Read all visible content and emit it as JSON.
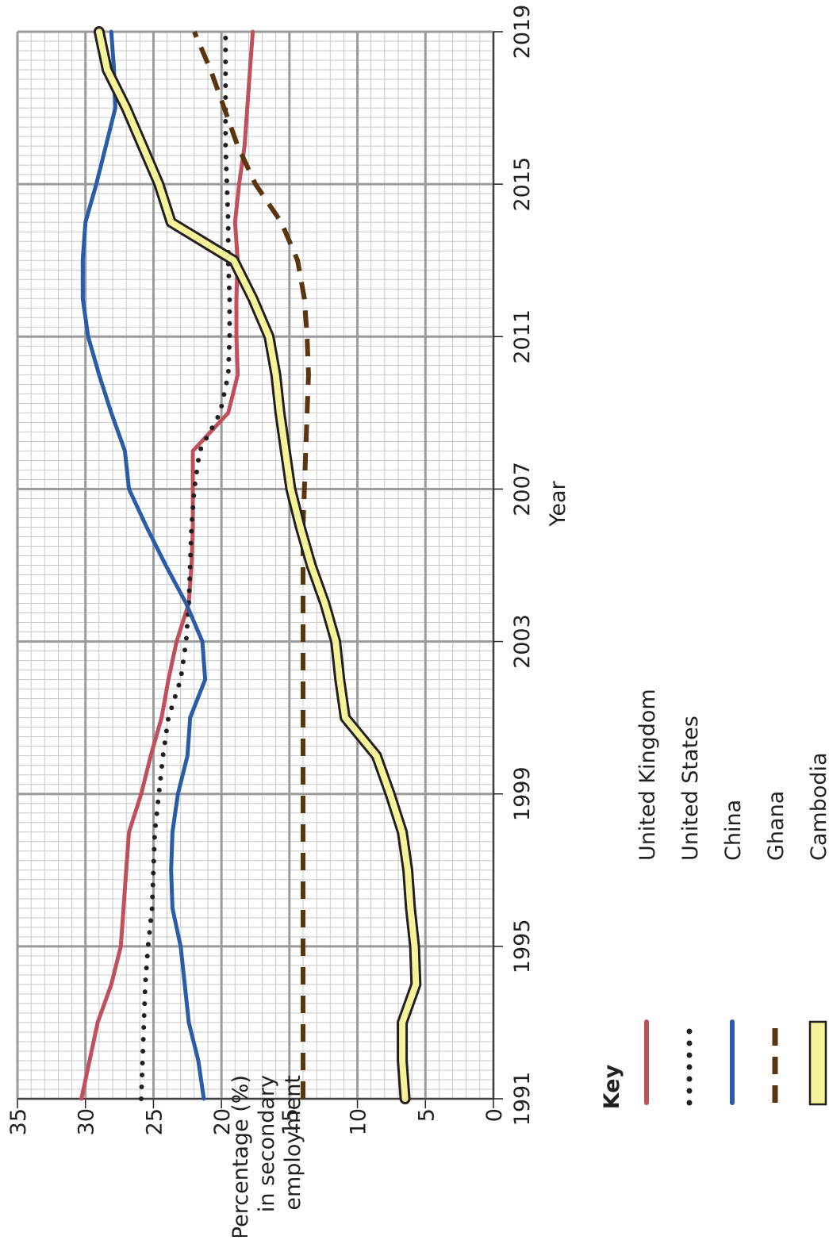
{
  "chart_data": {
    "type": "line",
    "x_label": "Year",
    "y_label": [
      "Percentage (%)",
      "in secondary",
      "employment"
    ],
    "legend_title": "Key",
    "x": [
      1991,
      1992,
      1993,
      1994,
      1995,
      1996,
      1997,
      1998,
      1999,
      2000,
      2001,
      2002,
      2003,
      2004,
      2005,
      2006,
      2007,
      2008,
      2009,
      2010,
      2011,
      2012,
      2013,
      2014,
      2015,
      2016,
      2017,
      2018,
      2019
    ],
    "xlim": [
      1991,
      2019
    ],
    "xticks": [
      1991,
      1995,
      1999,
      2003,
      2007,
      2011,
      2015,
      2019
    ],
    "ylim": [
      0,
      35
    ],
    "yticks": [
      0,
      5,
      10,
      15,
      20,
      25,
      30,
      35
    ],
    "grid": true,
    "series": [
      {
        "name": "United Kingdom",
        "color": "#c0505a",
        "style": "solid",
        "values": [
          30.3,
          29.7,
          29.1,
          28.1,
          27.4,
          27.2,
          27.0,
          26.8,
          25.9,
          25.2,
          24.4,
          23.9,
          23.3,
          22.4,
          22.2,
          22.1,
          22.1,
          22.1,
          19.5,
          18.8,
          18.9,
          18.9,
          18.8,
          19.0,
          18.7,
          18.3,
          18.1,
          17.9,
          17.7
        ]
      },
      {
        "name": "United States",
        "color": "#231f20",
        "style": "dotted",
        "values": [
          25.9,
          25.8,
          25.7,
          25.6,
          25.4,
          25.1,
          25.0,
          24.9,
          24.6,
          24.3,
          23.9,
          23.0,
          22.6,
          22.4,
          22.3,
          22.2,
          22.0,
          21.6,
          20.1,
          19.5,
          19.4,
          19.4,
          19.5,
          19.5,
          19.6,
          19.7,
          19.7,
          19.7,
          19.7
        ]
      },
      {
        "name": "China",
        "color": "#2a5ca8",
        "style": "solid",
        "values": [
          21.3,
          21.7,
          22.4,
          22.7,
          23.0,
          23.6,
          23.7,
          23.6,
          23.2,
          22.5,
          22.3,
          21.2,
          21.4,
          22.6,
          24.1,
          25.5,
          26.8,
          27.1,
          28.1,
          29.0,
          29.8,
          30.2,
          30.2,
          30.0,
          29.2,
          28.5,
          27.8,
          27.9,
          28.1
        ]
      },
      {
        "name": "Ghana",
        "color": "#5a3510",
        "style": "dashed",
        "values": [
          14.0,
          14.0,
          14.0,
          14.0,
          14.0,
          14.0,
          14.0,
          14.0,
          14.0,
          14.0,
          14.0,
          14.0,
          14.0,
          14.0,
          14.0,
          14.0,
          13.9,
          13.8,
          13.7,
          13.6,
          13.7,
          13.9,
          14.4,
          15.6,
          17.5,
          18.8,
          19.8,
          20.8,
          22.0
        ]
      },
      {
        "name": "Cambodia",
        "color": "#f5f29a",
        "style": "outlined",
        "values": [
          6.5,
          6.7,
          6.7,
          5.7,
          5.8,
          6.1,
          6.3,
          6.7,
          7.6,
          8.6,
          10.9,
          11.3,
          11.6,
          12.4,
          13.4,
          14.2,
          14.9,
          15.3,
          15.7,
          16.0,
          16.5,
          17.7,
          19.1,
          23.7,
          24.6,
          25.8,
          27.0,
          28.4,
          29.0
        ]
      }
    ]
  }
}
